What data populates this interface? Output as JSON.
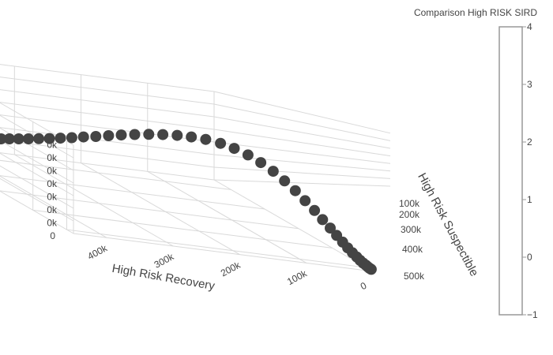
{
  "chart_data": {
    "type": "scatter",
    "dimensions": 3,
    "x_axis": {
      "label": "High Risk Recovery",
      "tick_labels": [
        "0",
        "100k",
        "200k",
        "300k",
        "400k"
      ]
    },
    "y_axis": {
      "label": "High Risk Suspectible",
      "tick_labels": [
        "100k",
        "200k",
        "300k",
        "400k",
        "500k"
      ]
    },
    "z_axis": {
      "label": "",
      "tick_labels": [
        "0",
        "0k",
        "0k",
        "0k",
        "0k",
        "0k",
        "0k",
        "0k"
      ]
    },
    "grid": true,
    "marker_color": "#444444",
    "colorbar": {
      "title": "Comparison High RISK SIRD",
      "tick_labels": [
        "−1",
        "0",
        "1",
        "2",
        "3",
        "4"
      ],
      "range": [
        -1,
        4
      ]
    },
    "series": [
      {
        "recovery": [
          0,
          1000,
          2000,
          3000,
          5000,
          7000,
          9000,
          12000,
          15000,
          18000,
          22000,
          26000,
          31000,
          36000,
          42000,
          48000,
          55000,
          62000,
          70000,
          78000,
          87000,
          96000,
          106000,
          116000,
          126000,
          137000,
          148000,
          160000,
          172000,
          184000,
          197000,
          210000,
          223000,
          236000,
          249000,
          262000,
          275000,
          287000,
          299000,
          310000,
          321000,
          331000,
          340000,
          349000,
          357000,
          364000,
          371000,
          377000,
          382000,
          387000,
          391000,
          395000,
          398000,
          401000,
          403000,
          405000,
          407000,
          409000,
          410000,
          411000,
          412000,
          413000
        ],
        "susceptible": [
          515000,
          512000,
          509000,
          505000,
          501000,
          496000,
          490000,
          483000,
          475000,
          466000,
          456000,
          445000,
          432000,
          418000,
          402000,
          385000,
          367000,
          347000,
          326000,
          304000,
          281000,
          258000,
          234000,
          211000,
          189000,
          168000,
          148000,
          130000,
          114000,
          100000,
          88000,
          77000,
          68000,
          60000,
          53000,
          47000,
          42000,
          37000,
          33000,
          30000,
          27000,
          24500,
          22000,
          20000,
          18500,
          17000,
          16000,
          15000,
          14200,
          13500,
          13000,
          12500,
          12100,
          11800,
          11500,
          11300,
          11100,
          10900,
          10800,
          10700,
          10600,
          10500
        ],
        "infected": [
          500,
          700,
          1000,
          1400,
          1900,
          2600,
          3500,
          4700,
          6100,
          7800,
          9800,
          12000,
          14500,
          17200,
          20000,
          22800,
          25400,
          27700,
          29500,
          30700,
          31300,
          31200,
          30500,
          29200,
          27600,
          25700,
          23600,
          21500,
          19400,
          17400,
          15500,
          13800,
          12200,
          10800,
          9500,
          8400,
          7400,
          6500,
          5700,
          5000,
          4400,
          3900,
          3400,
          3000,
          2600,
          2300,
          2000,
          1800,
          1600,
          1400,
          1200,
          1050,
          900,
          800,
          700,
          600,
          520,
          450,
          390,
          340,
          300,
          260
        ]
      }
    ]
  }
}
